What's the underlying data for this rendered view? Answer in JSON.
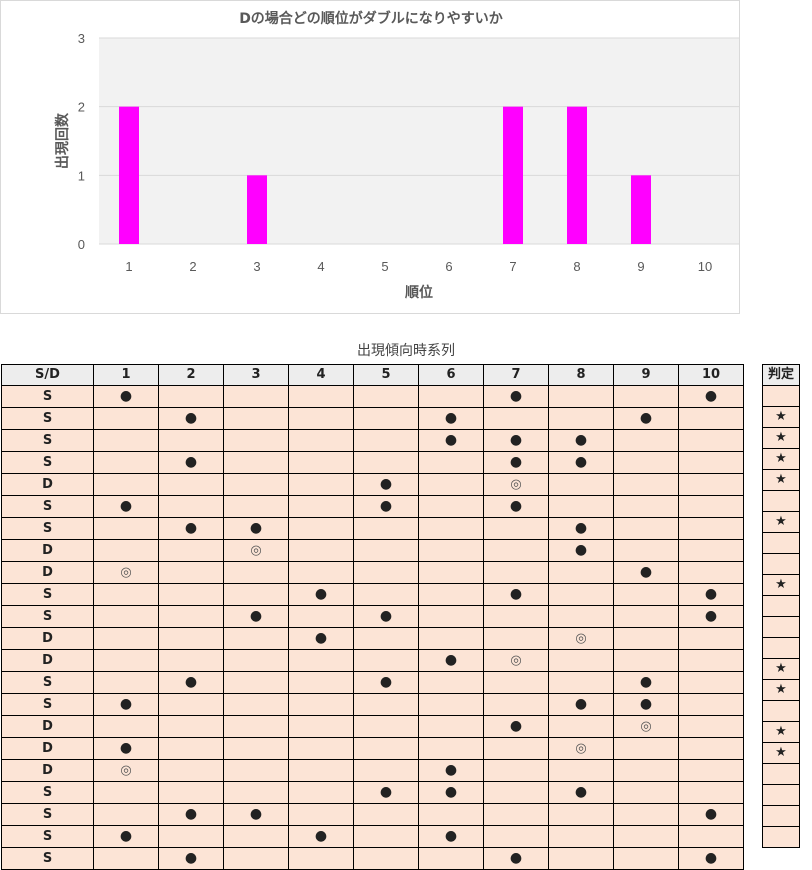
{
  "chart_data": {
    "type": "bar",
    "title": "Dの場合どの順位がダブルになりやすいか",
    "xlabel": "順位",
    "ylabel": "出現回数",
    "categories": [
      "1",
      "2",
      "3",
      "4",
      "5",
      "6",
      "7",
      "8",
      "9",
      "10"
    ],
    "values": [
      2,
      0,
      1,
      0,
      0,
      0,
      2,
      2,
      1,
      0
    ],
    "ylim": [
      0,
      3
    ],
    "yticks": [
      "0",
      "1",
      "2",
      "3"
    ],
    "bar_color": "#ff00ff",
    "plot_bg": "#f2f2f2",
    "gridlines": true
  },
  "table": {
    "title": "出現傾向時系列",
    "headers": [
      "S/D",
      "1",
      "2",
      "3",
      "4",
      "5",
      "6",
      "7",
      "8",
      "9",
      "10"
    ],
    "judge_header": "判定",
    "rows": [
      {
        "sd": "S",
        "cells": [
          "●",
          "",
          "",
          "",
          "",
          "",
          "●",
          "",
          "",
          "●"
        ],
        "judge": ""
      },
      {
        "sd": "S",
        "cells": [
          "",
          "●",
          "",
          "",
          "",
          "●",
          "",
          "",
          "●",
          ""
        ],
        "judge": "★"
      },
      {
        "sd": "S",
        "cells": [
          "",
          "",
          "",
          "",
          "",
          "●",
          "●",
          "●",
          "",
          ""
        ],
        "judge": "★"
      },
      {
        "sd": "S",
        "cells": [
          "",
          "●",
          "",
          "",
          "",
          "",
          "●",
          "●",
          "",
          ""
        ],
        "judge": "★"
      },
      {
        "sd": "D",
        "cells": [
          "",
          "",
          "",
          "",
          "●",
          "",
          "◎",
          "",
          "",
          ""
        ],
        "judge": "★"
      },
      {
        "sd": "S",
        "cells": [
          "●",
          "",
          "",
          "",
          "●",
          "",
          "●",
          "",
          "",
          ""
        ],
        "judge": ""
      },
      {
        "sd": "S",
        "cells": [
          "",
          "●",
          "●",
          "",
          "",
          "",
          "",
          "●",
          "",
          ""
        ],
        "judge": "★"
      },
      {
        "sd": "D",
        "cells": [
          "",
          "",
          "◎",
          "",
          "",
          "",
          "",
          "●",
          "",
          ""
        ],
        "judge": ""
      },
      {
        "sd": "D",
        "cells": [
          "◎",
          "",
          "",
          "",
          "",
          "",
          "",
          "",
          "●",
          ""
        ],
        "judge": ""
      },
      {
        "sd": "S",
        "cells": [
          "",
          "",
          "",
          "●",
          "",
          "",
          "●",
          "",
          "",
          "●"
        ],
        "judge": "★"
      },
      {
        "sd": "S",
        "cells": [
          "",
          "",
          "●",
          "",
          "●",
          "",
          "",
          "",
          "",
          "●"
        ],
        "judge": ""
      },
      {
        "sd": "D",
        "cells": [
          "",
          "",
          "",
          "●",
          "",
          "",
          "",
          "◎",
          "",
          ""
        ],
        "judge": ""
      },
      {
        "sd": "D",
        "cells": [
          "",
          "",
          "",
          "",
          "",
          "●",
          "◎",
          "",
          "",
          ""
        ],
        "judge": ""
      },
      {
        "sd": "S",
        "cells": [
          "",
          "●",
          "",
          "",
          "●",
          "",
          "",
          "",
          "●",
          ""
        ],
        "judge": "★"
      },
      {
        "sd": "S",
        "cells": [
          "●",
          "",
          "",
          "",
          "",
          "",
          "",
          "●",
          "●",
          ""
        ],
        "judge": "★"
      },
      {
        "sd": "D",
        "cells": [
          "",
          "",
          "",
          "",
          "",
          "",
          "●",
          "",
          "◎",
          ""
        ],
        "judge": ""
      },
      {
        "sd": "D",
        "cells": [
          "●",
          "",
          "",
          "",
          "",
          "",
          "",
          "◎",
          "",
          ""
        ],
        "judge": "★"
      },
      {
        "sd": "D",
        "cells": [
          "◎",
          "",
          "",
          "",
          "",
          "●",
          "",
          "",
          "",
          ""
        ],
        "judge": "★"
      },
      {
        "sd": "S",
        "cells": [
          "",
          "",
          "",
          "",
          "●",
          "●",
          "",
          "●",
          "",
          ""
        ],
        "judge": ""
      },
      {
        "sd": "S",
        "cells": [
          "",
          "●",
          "●",
          "",
          "",
          "",
          "",
          "",
          "",
          "●"
        ],
        "judge": ""
      },
      {
        "sd": "S",
        "cells": [
          "●",
          "",
          "",
          "●",
          "",
          "●",
          "",
          "",
          "",
          ""
        ],
        "judge": ""
      },
      {
        "sd": "S",
        "cells": [
          "",
          "●",
          "",
          "",
          "",
          "",
          "●",
          "",
          "",
          "●"
        ],
        "judge": ""
      }
    ]
  }
}
